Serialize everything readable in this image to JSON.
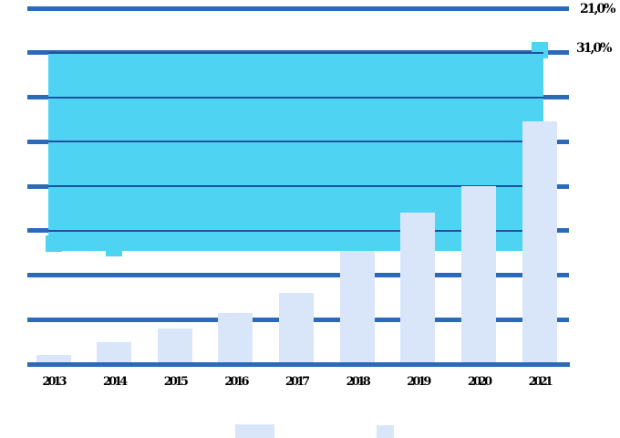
{
  "chart_data": {
    "type": "bar",
    "title": "",
    "xlabel": "",
    "ylabel": "",
    "categories": [
      "2013",
      "2014",
      "2015",
      "2016",
      "2017",
      "2018",
      "2019",
      "2020",
      "2021"
    ],
    "series": [
      {
        "name": "yearly-bars",
        "type": "bar",
        "color": "#d9e5f9",
        "values": [
          0.2,
          0.5,
          0.8,
          1.15,
          1.6,
          2.55,
          3.4,
          4.0,
          5.45
        ]
      },
      {
        "name": "cyan-band",
        "type": "area-band",
        "color": "#4ed3f2",
        "band_top": 7.0,
        "band_bottom": 2.55,
        "markers": [
          {
            "category": "2013",
            "value": 2.7
          },
          {
            "category": "2014",
            "value": 2.6
          },
          {
            "category": "2021",
            "value": 7.05
          }
        ]
      }
    ],
    "ylim": [
      0,
      8
    ],
    "y_gridline_step": 1,
    "gridline_count": 8,
    "grid": "horizontal-only",
    "y_tick_labels_visible": false,
    "legend_position": "bottom",
    "data_labels": [
      {
        "text": "21,0%",
        "position": "top-right"
      },
      {
        "text": "31,0%",
        "position": "right-of-band-top"
      }
    ]
  },
  "colors": {
    "grid_blue": "#2b6abb",
    "grid_navy_thin": "#20509f",
    "band_cyan": "#4ed3f2",
    "bar_lavender": "#d9e5f9",
    "text": "#000000",
    "background": "#ffffff"
  },
  "legend": {
    "swatches": [
      {
        "name": "legend-swatch-1",
        "color": "#d9e5f9"
      },
      {
        "name": "legend-swatch-2",
        "color": "#d9e5f9"
      }
    ]
  }
}
